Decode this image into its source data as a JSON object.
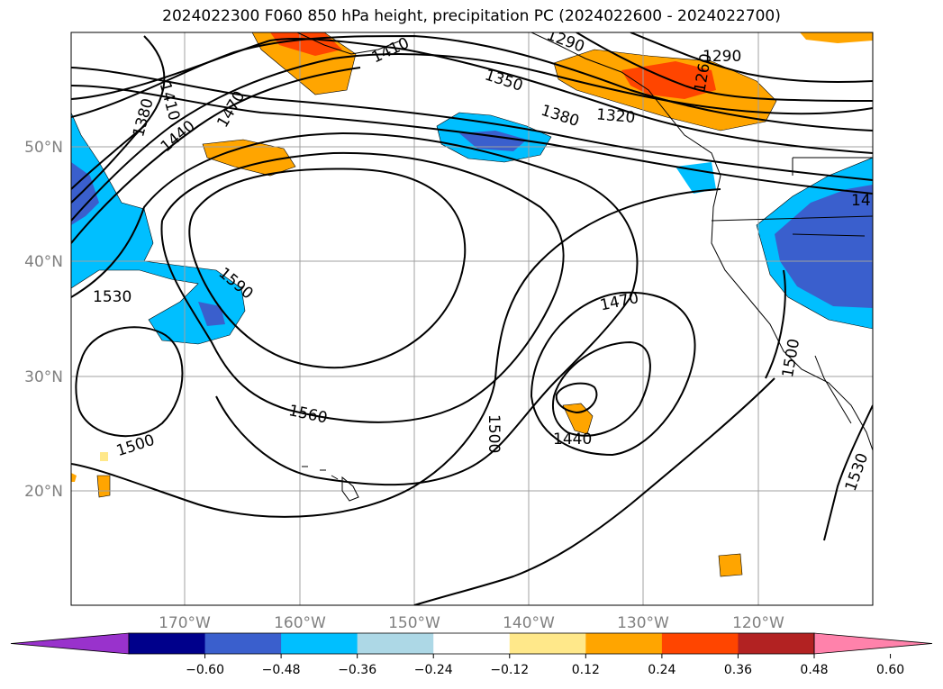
{
  "title": "2024022300 F060 850 hPa height, precipitation PC (2024022600 - 2024022700)",
  "map": {
    "lon_labels": [
      "170°W",
      "160°W",
      "150°W",
      "140°W",
      "130°W",
      "120°W"
    ],
    "lat_labels": [
      "50°N",
      "40°N",
      "30°N",
      "20°N"
    ],
    "contour_labels": [
      "1380",
      "1410",
      "1440",
      "1470",
      "1410",
      "1350",
      "1380",
      "1290",
      "1320",
      "1260",
      "1290",
      "1590",
      "1530",
      "1560",
      "1500",
      "1500",
      "1470",
      "1440",
      "1500",
      "1530",
      "14"
    ],
    "shading_colors": {
      "neg_strong": "#3a5fcd",
      "neg_mid": "#00bfff",
      "neg_weak": "#add8e6",
      "pos_weak": "#ffe88a",
      "pos_mid": "#ffa500",
      "pos_strong": "#ff4500"
    }
  },
  "colorbar": {
    "colors": [
      "#9932cc",
      "#00008b",
      "#3a5fcd",
      "#00bfff",
      "#add8e6",
      "#ffffff",
      "#ffe88a",
      "#ffa500",
      "#ff4500",
      "#b22222",
      "#ff82ab"
    ],
    "ticks": [
      "−0.60",
      "−0.48",
      "−0.36",
      "−0.24",
      "−0.12",
      "0.12",
      "0.24",
      "0.36",
      "0.48",
      "0.60"
    ]
  }
}
